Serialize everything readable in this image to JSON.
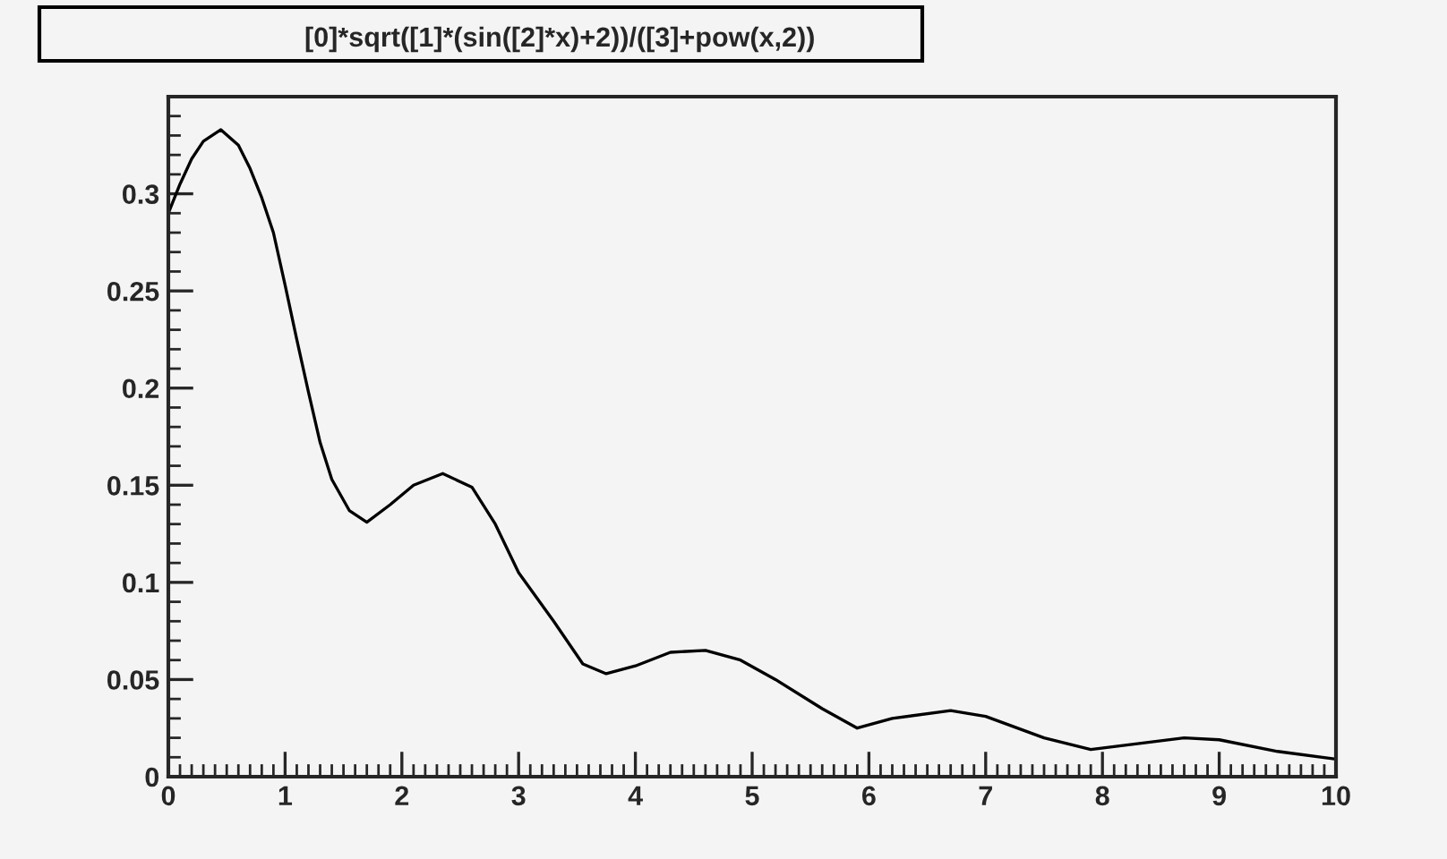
{
  "chart_data": {
    "type": "line",
    "title": "[0]*sqrt([1]*(sin([2]*x)+2))/([3]+pow(x,2))",
    "x": [
      0,
      0.1,
      0.2,
      0.3,
      0.45,
      0.6,
      0.7,
      0.8,
      0.9,
      1.0,
      1.1,
      1.2,
      1.3,
      1.4,
      1.55,
      1.7,
      1.9,
      2.1,
      2.35,
      2.6,
      2.8,
      3.0,
      3.3,
      3.55,
      3.75,
      4.0,
      4.3,
      4.6,
      4.9,
      5.2,
      5.6,
      5.9,
      6.2,
      6.7,
      7.0,
      7.5,
      7.9,
      8.3,
      8.7,
      9.0,
      9.5,
      10
    ],
    "series": [
      {
        "color": "#000000",
        "values": [
          0.29,
          0.305,
          0.318,
          0.327,
          0.333,
          0.325,
          0.313,
          0.298,
          0.28,
          0.253,
          0.225,
          0.198,
          0.172,
          0.153,
          0.137,
          0.131,
          0.14,
          0.15,
          0.156,
          0.149,
          0.13,
          0.105,
          0.08,
          0.058,
          0.053,
          0.057,
          0.064,
          0.065,
          0.06,
          0.05,
          0.035,
          0.025,
          0.03,
          0.034,
          0.031,
          0.02,
          0.014,
          0.017,
          0.02,
          0.019,
          0.013,
          0.009
        ]
      }
    ],
    "xlim": [
      0,
      10
    ],
    "xticks": [
      0,
      1,
      2,
      3,
      4,
      5,
      6,
      7,
      8,
      9,
      10
    ],
    "ylim": [
      0,
      0.35
    ],
    "yticks": [
      0,
      0.05,
      0.1,
      0.15,
      0.2,
      0.25,
      0.3
    ],
    "grid": false,
    "legend": false,
    "marker": "none",
    "line_style": "solid"
  }
}
